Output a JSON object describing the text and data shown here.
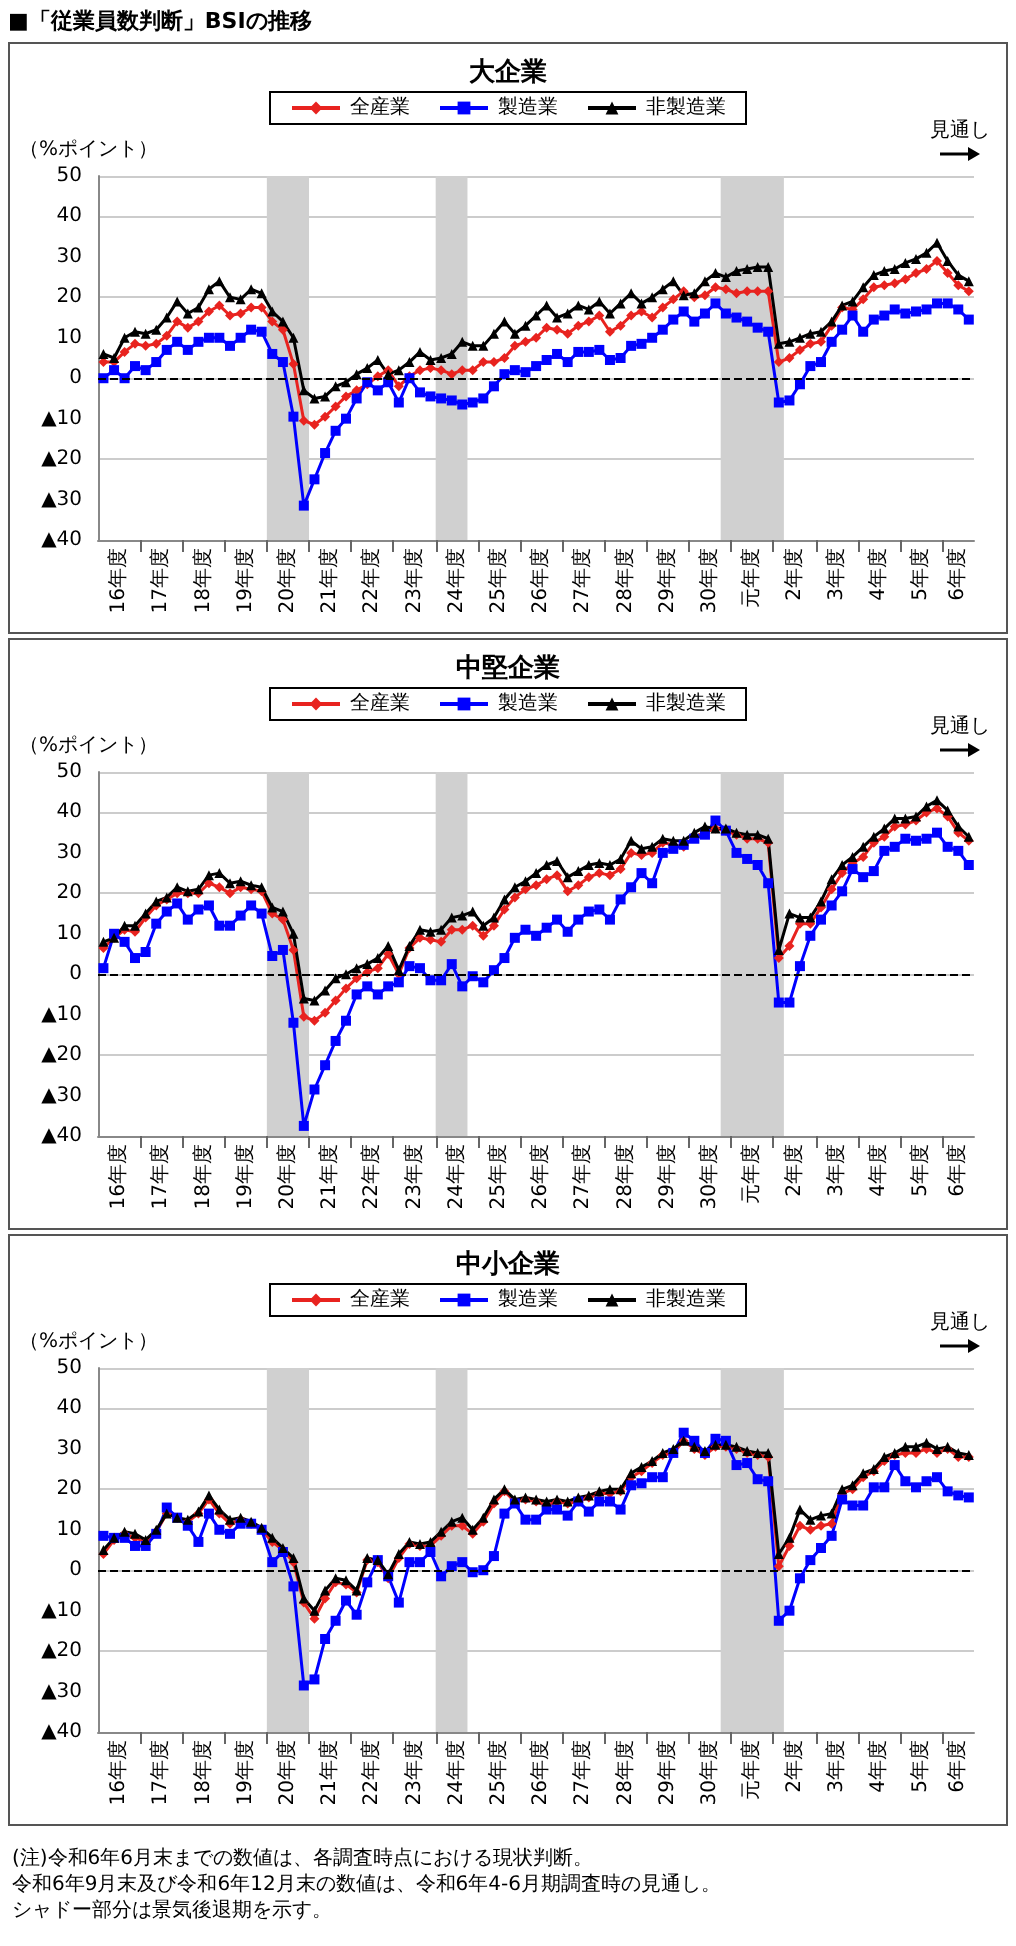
{
  "chart_data": [
    {
      "type": "line",
      "title": "大企業",
      "ylabel": "（%ポイント）",
      "annotations": [
        "見通し",
        "■「従業員数判断」BSIの推移"
      ],
      "x": [
        "2004-06",
        "2004-09",
        "2004-12",
        "2005-03",
        "2005-06",
        "2005-09",
        "2005-12",
        "2006-03",
        "2006-06",
        "2006-09",
        "2006-12",
        "2007-03",
        "2007-06",
        "2007-09",
        "2007-12",
        "2008-03",
        "2008-06",
        "2008-09",
        "2008-12",
        "2009-03",
        "2009-06",
        "2009-09",
        "2009-12",
        "2010-03",
        "2010-06",
        "2010-09",
        "2010-12",
        "2011-03",
        "2011-06",
        "2011-09",
        "2011-12",
        "2012-03",
        "2012-06",
        "2012-09",
        "2012-12",
        "2013-03",
        "2013-06",
        "2013-09",
        "2013-12",
        "2014-03",
        "2014-06",
        "2014-09",
        "2014-12",
        "2015-03",
        "2015-06",
        "2015-09",
        "2015-12",
        "2016-03",
        "2016-06",
        "2016-09",
        "2016-12",
        "2017-03",
        "2017-06",
        "2017-09",
        "2017-12",
        "2018-03",
        "2018-06",
        "2018-09",
        "2018-12",
        "2019-03",
        "2019-06",
        "2019-09",
        "2019-12",
        "2020-03",
        "2020-06",
        "2020-09",
        "2020-12",
        "2021-03",
        "2021-06",
        "2021-09",
        "2021-12",
        "2022-03",
        "2022-06",
        "2022-09",
        "2022-12",
        "2023-03",
        "2023-06",
        "2023-09",
        "2023-12",
        "2024-03",
        "2024-06",
        "2024-09",
        "2024-12"
      ],
      "series": [
        {
          "name": "全産業",
          "color": "#e8231f",
          "marker": "diamond",
          "values": [
            4,
            4,
            6.5,
            8.5,
            8,
            8.5,
            10.5,
            14,
            12.5,
            14,
            16.5,
            18,
            15.5,
            16,
            17.5,
            17.5,
            14,
            12,
            3.5,
            -10.5,
            -11.5,
            -9.5,
            -7,
            -4.5,
            -3,
            -1.5,
            0.5,
            2,
            -2,
            0.5,
            2,
            2.5,
            2,
            1,
            2,
            2,
            4,
            4,
            5,
            8,
            9,
            10,
            12.5,
            12,
            11,
            13,
            14,
            15.5,
            11.5,
            13,
            15.5,
            16.5,
            15,
            17.5,
            19.5,
            21.5,
            20,
            20.5,
            22.5,
            22,
            21,
            21.5,
            21.5,
            21.5,
            4,
            5,
            7,
            8.5,
            9,
            13,
            17.5,
            17,
            19.5,
            22.5,
            23,
            23.5,
            24.5,
            26,
            27,
            29,
            26,
            23,
            21.5
          ]
        },
        {
          "name": "製造業",
          "color": "#0000ff",
          "marker": "square",
          "values": [
            0,
            2,
            0,
            3,
            2,
            4,
            7,
            9,
            7,
            9,
            10,
            10,
            8,
            10,
            12,
            11.5,
            6,
            4,
            -9.5,
            -31.5,
            -25,
            -18.5,
            -13,
            -10,
            -5,
            -1,
            -3,
            -1,
            -6,
            0,
            -3.5,
            -4.5,
            -5,
            -5.5,
            -6.5,
            -6,
            -5,
            -2,
            1,
            2,
            1.5,
            3,
            4.5,
            6,
            4,
            6.5,
            6.5,
            7,
            4.5,
            5,
            8,
            8.5,
            10,
            12,
            14.5,
            16.5,
            14,
            16,
            18.5,
            16,
            15,
            14,
            12.5,
            11.5,
            -6,
            -5.5,
            -1.5,
            3,
            4,
            9,
            12,
            15.5,
            11.5,
            14.5,
            15.5,
            17,
            16,
            16.5,
            17,
            18.5,
            18.5,
            17,
            14.5
          ]
        },
        {
          "name": "非製造業",
          "color": "#000000",
          "marker": "triangle",
          "values": [
            6,
            5,
            10,
            11.5,
            11,
            12,
            15,
            19,
            16,
            17.5,
            22,
            24,
            20,
            19.5,
            22,
            21,
            16.5,
            14,
            10,
            -3,
            -5,
            -4.5,
            -2,
            -1,
            1,
            2.5,
            4.5,
            1,
            2,
            4,
            6.5,
            4.5,
            5,
            6,
            9,
            8,
            8,
            11,
            14,
            11,
            13,
            15.5,
            18,
            15,
            16,
            18,
            17,
            19,
            16,
            18.5,
            21,
            18.5,
            20,
            22,
            24,
            20.5,
            21,
            24,
            26,
            25,
            26.5,
            27,
            27.5,
            27.5,
            8.5,
            9,
            10,
            11,
            11.5,
            14,
            18,
            19,
            22.5,
            25.5,
            26.5,
            27,
            28.5,
            29.5,
            31,
            33.5,
            29,
            25.5,
            24
          ]
        }
      ],
      "xlim": [
        "2004-04-15",
        "2025-01-15"
      ],
      "xticks": [
        {
          "value": "2004-10-15",
          "label": "16年度"
        },
        {
          "value": "2005-04-15",
          "label": null
        },
        {
          "value": "2005-10-15",
          "label": "17年度"
        },
        {
          "value": "2006-04-15",
          "label": null
        },
        {
          "value": "2006-10-15",
          "label": "18年度"
        },
        {
          "value": "2007-04-15",
          "label": null
        },
        {
          "value": "2007-10-15",
          "label": "19年度"
        },
        {
          "value": "2008-04-15",
          "label": null
        },
        {
          "value": "2008-10-15",
          "label": "20年度"
        },
        {
          "value": "2009-04-15",
          "label": null
        },
        {
          "value": "2009-10-15",
          "label": "21年度"
        },
        {
          "value": "2010-04-15",
          "label": null
        },
        {
          "value": "2010-10-15",
          "label": "22年度"
        },
        {
          "value": "2011-04-15",
          "label": null
        },
        {
          "value": "2011-10-15",
          "label": "23年度"
        },
        {
          "value": "2012-04-15",
          "label": null
        },
        {
          "value": "2012-10-15",
          "label": "24年度"
        },
        {
          "value": "2013-04-15",
          "label": null
        },
        {
          "value": "2013-10-15",
          "label": "25年度"
        },
        {
          "value": "2014-04-15",
          "label": null
        },
        {
          "value": "2014-10-15",
          "label": "26年度"
        },
        {
          "value": "2015-04-15",
          "label": null
        },
        {
          "value": "2015-10-15",
          "label": "27年度"
        },
        {
          "value": "2016-04-15",
          "label": null
        },
        {
          "value": "2016-10-15",
          "label": "28年度"
        },
        {
          "value": "2017-04-15",
          "label": null
        },
        {
          "value": "2017-10-15",
          "label": "29年度"
        },
        {
          "value": "2018-04-15",
          "label": null
        },
        {
          "value": "2018-10-15",
          "label": "30年度"
        },
        {
          "value": "2019-04-15",
          "label": null
        },
        {
          "value": "2019-10-15",
          "label": "元年度"
        },
        {
          "value": "2020-04-15",
          "label": null
        },
        {
          "value": "2020-10-15",
          "label": "2年度"
        },
        {
          "value": "2021-04-15",
          "label": null
        },
        {
          "value": "2021-10-15",
          "label": "3年度"
        },
        {
          "value": "2022-04-15",
          "label": null
        },
        {
          "value": "2022-10-15",
          "label": "4年度"
        },
        {
          "value": "2023-04-15",
          "label": null
        },
        {
          "value": "2023-10-15",
          "label": "5年度"
        },
        {
          "value": "2024-04-15",
          "label": null
        },
        {
          "value": "2024-09-01",
          "label": "6年度"
        }
      ],
      "ylim": [
        -40,
        50
      ],
      "yticks": [
        {
          "value": -40,
          "label": "▲40"
        },
        {
          "value": -30,
          "label": "▲30"
        },
        {
          "value": -20,
          "label": "▲20"
        },
        {
          "value": -10,
          "label": "▲10"
        },
        0,
        10,
        20,
        30,
        40,
        50
      ],
      "ref_lines": [
        {
          "axis": "y",
          "value": 0,
          "color": "#000000",
          "line_style": "dashed"
        }
      ],
      "bands": [
        {
          "axis": "x",
          "from": "2008-04-15",
          "to": "2009-04-15",
          "color": "#d0d0d0"
        },
        {
          "axis": "x",
          "from": "2012-04-15",
          "to": "2013-01-15",
          "color": "#d0d0d0"
        },
        {
          "axis": "x",
          "from": "2019-01-15",
          "to": "2020-07-15",
          "color": "#d0d0d0"
        }
      ],
      "grid": "y",
      "legend": "top"
    },
    {
      "type": "line",
      "title": "中堅企業",
      "ylabel": "（%ポイント）",
      "annotations": [
        "見通し"
      ],
      "x": [
        "2004-06",
        "2004-09",
        "2004-12",
        "2005-03",
        "2005-06",
        "2005-09",
        "2005-12",
        "2006-03",
        "2006-06",
        "2006-09",
        "2006-12",
        "2007-03",
        "2007-06",
        "2007-09",
        "2007-12",
        "2008-03",
        "2008-06",
        "2008-09",
        "2008-12",
        "2009-03",
        "2009-06",
        "2009-09",
        "2009-12",
        "2010-03",
        "2010-06",
        "2010-09",
        "2010-12",
        "2011-03",
        "2011-06",
        "2011-09",
        "2011-12",
        "2012-03",
        "2012-06",
        "2012-09",
        "2012-12",
        "2013-03",
        "2013-06",
        "2013-09",
        "2013-12",
        "2014-03",
        "2014-06",
        "2014-09",
        "2014-12",
        "2015-03",
        "2015-06",
        "2015-09",
        "2015-12",
        "2016-03",
        "2016-06",
        "2016-09",
        "2016-12",
        "2017-03",
        "2017-06",
        "2017-09",
        "2017-12",
        "2018-03",
        "2018-06",
        "2018-09",
        "2018-12",
        "2019-03",
        "2019-06",
        "2019-09",
        "2019-12",
        "2020-03",
        "2020-06",
        "2020-09",
        "2020-12",
        "2021-03",
        "2021-06",
        "2021-09",
        "2021-12",
        "2022-03",
        "2022-06",
        "2022-09",
        "2022-12",
        "2023-03",
        "2023-06",
        "2023-09",
        "2023-12",
        "2024-03",
        "2024-06",
        "2024-09",
        "2024-12"
      ],
      "series": [
        {
          "name": "全産業",
          "color": "#e8231f",
          "marker": "diamond",
          "values": [
            6.5,
            9,
            11,
            10.5,
            14,
            17,
            18.5,
            20,
            20,
            20,
            22.5,
            21.5,
            20,
            21.5,
            21,
            20.5,
            15,
            13.5,
            6,
            -10.5,
            -11.5,
            -9.5,
            -6.5,
            -3.5,
            -1,
            0.5,
            1.5,
            5,
            0,
            6.5,
            9,
            8.5,
            8,
            11,
            11,
            12,
            9.5,
            12,
            16,
            19,
            21,
            22,
            23.5,
            24.5,
            20.5,
            22,
            24,
            25,
            24.5,
            26,
            30,
            29.5,
            30,
            32.5,
            32,
            31.5,
            34,
            35,
            36,
            35.5,
            34.5,
            33.5,
            33.5,
            32.5,
            4,
            7,
            12.5,
            12.5,
            16.5,
            21,
            25,
            27.5,
            29,
            32.5,
            34,
            36.5,
            37,
            38,
            40,
            41,
            39,
            35,
            33
          ]
        },
        {
          "name": "製造業",
          "color": "#0000ff",
          "marker": "square",
          "values": [
            1.5,
            10,
            8,
            4,
            5.5,
            12.5,
            15.5,
            17.5,
            13.5,
            16,
            17,
            12,
            12,
            14.5,
            17,
            15,
            4.5,
            6,
            -12,
            -37.5,
            -28.5,
            -22.5,
            -16.5,
            -11.5,
            -5,
            -3,
            -5,
            -3,
            -2,
            2,
            1.5,
            -1.5,
            -1.5,
            2.5,
            -3,
            -0.5,
            -2,
            1,
            4,
            9,
            11,
            9.5,
            11.5,
            13.5,
            10.5,
            13.5,
            15.5,
            16,
            13.5,
            18.5,
            21.5,
            25,
            22.5,
            30,
            31,
            32,
            33.5,
            34.5,
            38,
            35.5,
            30,
            28.5,
            27,
            22.5,
            -7,
            -7,
            2,
            9.5,
            13.5,
            17,
            20.5,
            26,
            24,
            25.5,
            30.5,
            31.5,
            33.5,
            33,
            33.5,
            35,
            31.5,
            30.5,
            27
          ]
        },
        {
          "name": "非製造業",
          "color": "#000000",
          "marker": "triangle",
          "values": [
            8,
            9,
            12,
            12,
            15,
            18,
            19,
            21.5,
            20.5,
            21,
            24.5,
            25,
            22.5,
            23,
            22,
            21.5,
            16.5,
            15.5,
            10,
            -6,
            -6.5,
            -4,
            -1,
            0,
            1.5,
            2.5,
            4,
            7,
            1,
            7,
            11,
            10.5,
            11,
            14,
            14.5,
            15.5,
            12,
            14,
            18.5,
            21.5,
            23,
            25,
            27,
            28,
            24,
            25.5,
            27,
            27.5,
            27,
            28.5,
            33,
            31,
            31.5,
            33.5,
            33,
            33,
            35,
            36.5,
            36,
            36,
            35,
            34.5,
            34.5,
            33.5,
            6,
            15,
            14,
            14,
            18,
            23.5,
            27,
            29,
            31.5,
            34,
            36,
            38.5,
            38.5,
            39,
            41.5,
            43,
            40.5,
            36.5,
            34
          ]
        }
      ],
      "xlim": [
        "2004-04-15",
        "2025-01-15"
      ],
      "xticks": [
        {
          "value": "2004-10-15",
          "label": "16年度"
        },
        {
          "value": "2005-04-15",
          "label": null
        },
        {
          "value": "2005-10-15",
          "label": "17年度"
        },
        {
          "value": "2006-04-15",
          "label": null
        },
        {
          "value": "2006-10-15",
          "label": "18年度"
        },
        {
          "value": "2007-04-15",
          "label": null
        },
        {
          "value": "2007-10-15",
          "label": "19年度"
        },
        {
          "value": "2008-04-15",
          "label": null
        },
        {
          "value": "2008-10-15",
          "label": "20年度"
        },
        {
          "value": "2009-04-15",
          "label": null
        },
        {
          "value": "2009-10-15",
          "label": "21年度"
        },
        {
          "value": "2010-04-15",
          "label": null
        },
        {
          "value": "2010-10-15",
          "label": "22年度"
        },
        {
          "value": "2011-04-15",
          "label": null
        },
        {
          "value": "2011-10-15",
          "label": "23年度"
        },
        {
          "value": "2012-04-15",
          "label": null
        },
        {
          "value": "2012-10-15",
          "label": "24年度"
        },
        {
          "value": "2013-04-15",
          "label": null
        },
        {
          "value": "2013-10-15",
          "label": "25年度"
        },
        {
          "value": "2014-04-15",
          "label": null
        },
        {
          "value": "2014-10-15",
          "label": "26年度"
        },
        {
          "value": "2015-04-15",
          "label": null
        },
        {
          "value": "2015-10-15",
          "label": "27年度"
        },
        {
          "value": "2016-04-15",
          "label": null
        },
        {
          "value": "2016-10-15",
          "label": "28年度"
        },
        {
          "value": "2017-04-15",
          "label": null
        },
        {
          "value": "2017-10-15",
          "label": "29年度"
        },
        {
          "value": "2018-04-15",
          "label": null
        },
        {
          "value": "2018-10-15",
          "label": "30年度"
        },
        {
          "value": "2019-04-15",
          "label": null
        },
        {
          "value": "2019-10-15",
          "label": "元年度"
        },
        {
          "value": "2020-04-15",
          "label": null
        },
        {
          "value": "2020-10-15",
          "label": "2年度"
        },
        {
          "value": "2021-04-15",
          "label": null
        },
        {
          "value": "2021-10-15",
          "label": "3年度"
        },
        {
          "value": "2022-04-15",
          "label": null
        },
        {
          "value": "2022-10-15",
          "label": "4年度"
        },
        {
          "value": "2023-04-15",
          "label": null
        },
        {
          "value": "2023-10-15",
          "label": "5年度"
        },
        {
          "value": "2024-04-15",
          "label": null
        },
        {
          "value": "2024-09-01",
          "label": "6年度"
        }
      ],
      "ylim": [
        -40,
        50
      ],
      "yticks": [
        {
          "value": -40,
          "label": "▲40"
        },
        {
          "value": -30,
          "label": "▲30"
        },
        {
          "value": -20,
          "label": "▲20"
        },
        {
          "value": -10,
          "label": "▲10"
        },
        0,
        10,
        20,
        30,
        40,
        50
      ],
      "ref_lines": [
        {
          "axis": "y",
          "value": 0,
          "color": "#000000",
          "line_style": "dashed"
        }
      ],
      "bands": [
        {
          "axis": "x",
          "from": "2008-04-15",
          "to": "2009-04-15",
          "color": "#d0d0d0"
        },
        {
          "axis": "x",
          "from": "2012-04-15",
          "to": "2013-01-15",
          "color": "#d0d0d0"
        },
        {
          "axis": "x",
          "from": "2019-01-15",
          "to": "2020-07-15",
          "color": "#d0d0d0"
        }
      ],
      "grid": "y",
      "legend": "top"
    },
    {
      "type": "line",
      "title": "中小企業",
      "ylabel": "（%ポイント）",
      "annotations": [
        "見通し",
        "(注)令和6年6月末までの数値は、各調査時点における現状判断。",
        "令和6年9月末及び令和6年12月末の数値は、令和6年4-6月期調査時の見通し。",
        "シャドー部分は景気後退期を示す。"
      ],
      "x": [
        "2004-06",
        "2004-09",
        "2004-12",
        "2005-03",
        "2005-06",
        "2005-09",
        "2005-12",
        "2006-03",
        "2006-06",
        "2006-09",
        "2006-12",
        "2007-03",
        "2007-06",
        "2007-09",
        "2007-12",
        "2008-03",
        "2008-06",
        "2008-09",
        "2008-12",
        "2009-03",
        "2009-06",
        "2009-09",
        "2009-12",
        "2010-03",
        "2010-06",
        "2010-09",
        "2010-12",
        "2011-03",
        "2011-06",
        "2011-09",
        "2011-12",
        "2012-03",
        "2012-06",
        "2012-09",
        "2012-12",
        "2013-03",
        "2013-06",
        "2013-09",
        "2013-12",
        "2014-03",
        "2014-06",
        "2014-09",
        "2014-12",
        "2015-03",
        "2015-06",
        "2015-09",
        "2015-12",
        "2016-03",
        "2016-06",
        "2016-09",
        "2016-12",
        "2017-03",
        "2017-06",
        "2017-09",
        "2017-12",
        "2018-03",
        "2018-06",
        "2018-09",
        "2018-12",
        "2019-03",
        "2019-06",
        "2019-09",
        "2019-12",
        "2020-03",
        "2020-06",
        "2020-09",
        "2020-12",
        "2021-03",
        "2021-06",
        "2021-09",
        "2021-12",
        "2022-03",
        "2022-06",
        "2022-09",
        "2022-12",
        "2023-03",
        "2023-06",
        "2023-09",
        "2023-12",
        "2024-03",
        "2024-06",
        "2024-09",
        "2024-12"
      ],
      "series": [
        {
          "name": "全産業",
          "color": "#e8231f",
          "marker": "diamond",
          "values": [
            4,
            7.5,
            9,
            8,
            7,
            9.5,
            14,
            13,
            12,
            14,
            17.5,
            14,
            11.5,
            12.5,
            11.5,
            10,
            7,
            5,
            2,
            -8,
            -12,
            -7,
            -3,
            -3.5,
            -5.5,
            2.5,
            2,
            -2,
            3,
            6.5,
            6,
            6,
            8.5,
            11,
            11,
            9,
            12,
            16.5,
            19.5,
            17,
            17.5,
            17,
            16,
            17,
            16.5,
            17,
            18,
            19,
            19,
            19.5,
            23,
            24.5,
            26.5,
            28.5,
            29,
            32,
            30,
            28.5,
            30.5,
            30.5,
            30,
            29,
            28.5,
            28,
            1,
            6,
            11,
            10,
            11,
            11.5,
            19,
            20,
            23,
            24.5,
            27,
            28.5,
            29,
            29,
            30,
            29,
            30,
            28,
            28
          ]
        },
        {
          "name": "製造業",
          "color": "#0000ff",
          "marker": "square",
          "values": [
            8.5,
            8,
            8,
            6,
            6,
            9,
            15.5,
            13,
            11,
            7,
            14,
            10,
            9,
            11.5,
            11.5,
            10,
            2,
            4.5,
            -4,
            -28.5,
            -27,
            -17,
            -12.5,
            -7.5,
            -11,
            -3,
            2.5,
            -1.5,
            -8,
            2,
            2,
            4.5,
            -1.5,
            1,
            2,
            -0.5,
            0,
            3.5,
            14,
            16.5,
            12.5,
            12.5,
            15,
            15,
            13.5,
            17,
            14.5,
            17,
            17,
            15,
            21,
            21.5,
            23,
            23,
            29,
            34,
            32,
            29,
            32.5,
            32,
            26,
            26.5,
            22.5,
            22,
            -12.5,
            -10,
            -2,
            2.5,
            5.5,
            8.5,
            17.5,
            16,
            16,
            20.5,
            20.5,
            26,
            22,
            20.5,
            22,
            23,
            19.5,
            18.5,
            18
          ]
        },
        {
          "name": "非製造業",
          "color": "#000000",
          "marker": "triangle",
          "values": [
            5,
            8,
            9.5,
            9,
            7.5,
            10,
            14,
            13,
            12.5,
            14.5,
            18.5,
            15,
            12.5,
            13,
            12,
            10.5,
            8,
            5.5,
            3,
            -7,
            -10,
            -5,
            -2,
            -2.5,
            -5,
            3,
            2.5,
            -1,
            4,
            7,
            6.5,
            7,
            9.5,
            12,
            13,
            10,
            13,
            17.5,
            20,
            17.5,
            18,
            17.5,
            17,
            17.5,
            17,
            18,
            18.5,
            19.5,
            20,
            20,
            24,
            25.5,
            27,
            29,
            30,
            32,
            30.5,
            29.5,
            31,
            31,
            30.5,
            29.5,
            29,
            29,
            4,
            8,
            15,
            12.5,
            13.5,
            14,
            20,
            21,
            24,
            25,
            28,
            29,
            30.5,
            30.5,
            31.5,
            30,
            30.5,
            29,
            28.5
          ]
        }
      ],
      "xlim": [
        "2004-04-15",
        "2025-01-15"
      ],
      "xticks": [
        {
          "value": "2004-10-15",
          "label": "16年度"
        },
        {
          "value": "2005-04-15",
          "label": null
        },
        {
          "value": "2005-10-15",
          "label": "17年度"
        },
        {
          "value": "2006-04-15",
          "label": null
        },
        {
          "value": "2006-10-15",
          "label": "18年度"
        },
        {
          "value": "2007-04-15",
          "label": null
        },
        {
          "value": "2007-10-15",
          "label": "19年度"
        },
        {
          "value": "2008-04-15",
          "label": null
        },
        {
          "value": "2008-10-15",
          "label": "20年度"
        },
        {
          "value": "2009-04-15",
          "label": null
        },
        {
          "value": "2009-10-15",
          "label": "21年度"
        },
        {
          "value": "2010-04-15",
          "label": null
        },
        {
          "value": "2010-10-15",
          "label": "22年度"
        },
        {
          "value": "2011-04-15",
          "label": null
        },
        {
          "value": "2011-10-15",
          "label": "23年度"
        },
        {
          "value": "2012-04-15",
          "label": null
        },
        {
          "value": "2012-10-15",
          "label": "24年度"
        },
        {
          "value": "2013-04-15",
          "label": null
        },
        {
          "value": "2013-10-15",
          "label": "25年度"
        },
        {
          "value": "2014-04-15",
          "label": null
        },
        {
          "value": "2014-10-15",
          "label": "26年度"
        },
        {
          "value": "2015-04-15",
          "label": null
        },
        {
          "value": "2015-10-15",
          "label": "27年度"
        },
        {
          "value": "2016-04-15",
          "label": null
        },
        {
          "value": "2016-10-15",
          "label": "28年度"
        },
        {
          "value": "2017-04-15",
          "label": null
        },
        {
          "value": "2017-10-15",
          "label": "29年度"
        },
        {
          "value": "2018-04-15",
          "label": null
        },
        {
          "value": "2018-10-15",
          "label": "30年度"
        },
        {
          "value": "2019-04-15",
          "label": null
        },
        {
          "value": "2019-10-15",
          "label": "元年度"
        },
        {
          "value": "2020-04-15",
          "label": null
        },
        {
          "value": "2020-10-15",
          "label": "2年度"
        },
        {
          "value": "2021-04-15",
          "label": null
        },
        {
          "value": "2021-10-15",
          "label": "3年度"
        },
        {
          "value": "2022-04-15",
          "label": null
        },
        {
          "value": "2022-10-15",
          "label": "4年度"
        },
        {
          "value": "2023-04-15",
          "label": null
        },
        {
          "value": "2023-10-15",
          "label": "5年度"
        },
        {
          "value": "2024-04-15",
          "label": null
        },
        {
          "value": "2024-09-01",
          "label": "6年度"
        }
      ],
      "ylim": [
        -40,
        50
      ],
      "yticks": [
        {
          "value": -40,
          "label": "▲40"
        },
        {
          "value": -30,
          "label": "▲30"
        },
        {
          "value": -20,
          "label": "▲20"
        },
        {
          "value": -10,
          "label": "▲10"
        },
        0,
        10,
        20,
        30,
        40,
        50
      ],
      "ref_lines": [
        {
          "axis": "y",
          "value": 0,
          "color": "#000000",
          "line_style": "dashed"
        }
      ],
      "bands": [
        {
          "axis": "x",
          "from": "2008-04-15",
          "to": "2009-04-15",
          "color": "#d0d0d0"
        },
        {
          "axis": "x",
          "from": "2012-04-15",
          "to": "2013-01-15",
          "color": "#d0d0d0"
        },
        {
          "axis": "x",
          "from": "2019-01-15",
          "to": "2020-07-15",
          "color": "#d0d0d0"
        }
      ],
      "grid": "y",
      "legend": "top"
    }
  ]
}
